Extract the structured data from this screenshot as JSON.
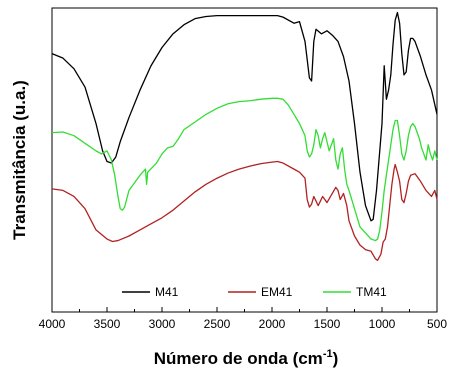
{
  "chart_data": {
    "type": "line",
    "title": "",
    "xlabel": "Número de onda (cm",
    "xlabel_sup": "-1",
    "xlabel_close": ")",
    "ylabel": "Transmitância (u.a.)",
    "xlim": [
      4000,
      500
    ],
    "x_reversed": true,
    "ylim": [
      0,
      100
    ],
    "y_ticks_labeled": false,
    "grid": false,
    "legend_position": "bottom-center",
    "x_ticks": [
      4000,
      3500,
      3000,
      2500,
      2000,
      1500,
      1000,
      500
    ],
    "x_tick_labels": [
      "4000",
      "3500",
      "3000",
      "2500",
      "2000",
      "1500",
      "1000",
      "500"
    ],
    "series": [
      {
        "name": "M41",
        "color": "#000000",
        "points": [
          [
            4000,
            85
          ],
          [
            3900,
            83.5
          ],
          [
            3800,
            80
          ],
          [
            3700,
            74
          ],
          [
            3600,
            62
          ],
          [
            3540,
            53
          ],
          [
            3500,
            49.5
          ],
          [
            3460,
            49
          ],
          [
            3420,
            51
          ],
          [
            3380,
            56
          ],
          [
            3300,
            64
          ],
          [
            3200,
            73
          ],
          [
            3100,
            81
          ],
          [
            3000,
            87
          ],
          [
            2900,
            91.5
          ],
          [
            2800,
            94.5
          ],
          [
            2700,
            96.5
          ],
          [
            2600,
            97.2
          ],
          [
            2500,
            97.5
          ],
          [
            2300,
            97.5
          ],
          [
            2100,
            97.5
          ],
          [
            1950,
            97.5
          ],
          [
            1900,
            97
          ],
          [
            1800,
            95
          ],
          [
            1750,
            95.5
          ],
          [
            1700,
            89
          ],
          [
            1660,
            77
          ],
          [
            1640,
            76
          ],
          [
            1620,
            89
          ],
          [
            1600,
            93
          ],
          [
            1550,
            91.5
          ],
          [
            1500,
            92.5
          ],
          [
            1450,
            91
          ],
          [
            1400,
            89
          ],
          [
            1350,
            84
          ],
          [
            1300,
            76
          ],
          [
            1250,
            62
          ],
          [
            1200,
            46
          ],
          [
            1150,
            35
          ],
          [
            1100,
            30
          ],
          [
            1080,
            30.5
          ],
          [
            1050,
            40
          ],
          [
            1000,
            62
          ],
          [
            980,
            81
          ],
          [
            960,
            70
          ],
          [
            940,
            73
          ],
          [
            920,
            78
          ],
          [
            900,
            88
          ],
          [
            880,
            96
          ],
          [
            860,
            98.5
          ],
          [
            840,
            95
          ],
          [
            820,
            85
          ],
          [
            800,
            78
          ],
          [
            780,
            79
          ],
          [
            760,
            86
          ],
          [
            740,
            90
          ],
          [
            720,
            90
          ],
          [
            700,
            89
          ],
          [
            650,
            84
          ],
          [
            600,
            78
          ],
          [
            550,
            73
          ],
          [
            500,
            65
          ]
        ]
      },
      {
        "name": "EM41",
        "color": "#b22222",
        "points": [
          [
            4000,
            40.5
          ],
          [
            3900,
            40
          ],
          [
            3800,
            38
          ],
          [
            3700,
            34
          ],
          [
            3600,
            27
          ],
          [
            3500,
            24
          ],
          [
            3450,
            23.2
          ],
          [
            3400,
            23.5
          ],
          [
            3300,
            25
          ],
          [
            3200,
            27
          ],
          [
            3100,
            29
          ],
          [
            3000,
            31
          ],
          [
            2900,
            33.5
          ],
          [
            2800,
            36.5
          ],
          [
            2700,
            39.5
          ],
          [
            2600,
            42
          ],
          [
            2500,
            44
          ],
          [
            2400,
            45.7
          ],
          [
            2300,
            47
          ],
          [
            2200,
            48
          ],
          [
            2100,
            48.8
          ],
          [
            2000,
            49.3
          ],
          [
            1950,
            49.5
          ],
          [
            1900,
            49
          ],
          [
            1800,
            47
          ],
          [
            1750,
            46
          ],
          [
            1700,
            44
          ],
          [
            1680,
            37
          ],
          [
            1660,
            34.5
          ],
          [
            1640,
            35.5
          ],
          [
            1620,
            38
          ],
          [
            1600,
            36.5
          ],
          [
            1580,
            35
          ],
          [
            1560,
            36.5
          ],
          [
            1540,
            38
          ],
          [
            1500,
            36
          ],
          [
            1460,
            38.5
          ],
          [
            1420,
            41
          ],
          [
            1400,
            40
          ],
          [
            1380,
            37
          ],
          [
            1350,
            39
          ],
          [
            1320,
            35
          ],
          [
            1300,
            30
          ],
          [
            1250,
            25
          ],
          [
            1200,
            22
          ],
          [
            1150,
            20.5
          ],
          [
            1100,
            20
          ],
          [
            1060,
            17.5
          ],
          [
            1040,
            17
          ],
          [
            1010,
            19
          ],
          [
            990,
            23
          ],
          [
            970,
            24
          ],
          [
            950,
            28
          ],
          [
            930,
            35
          ],
          [
            910,
            42
          ],
          [
            890,
            47
          ],
          [
            880,
            48.5
          ],
          [
            860,
            46
          ],
          [
            840,
            43
          ],
          [
            820,
            37
          ],
          [
            800,
            36
          ],
          [
            780,
            39
          ],
          [
            760,
            43
          ],
          [
            740,
            45
          ],
          [
            700,
            45.5
          ],
          [
            650,
            43
          ],
          [
            600,
            40
          ],
          [
            550,
            38
          ],
          [
            520,
            40
          ],
          [
            500,
            37
          ]
        ]
      },
      {
        "name": "TM41",
        "color": "#33dd33",
        "points": [
          [
            4000,
            59
          ],
          [
            3900,
            59.2
          ],
          [
            3800,
            58
          ],
          [
            3700,
            55.5
          ],
          [
            3600,
            53
          ],
          [
            3550,
            52
          ],
          [
            3500,
            53
          ],
          [
            3460,
            50
          ],
          [
            3430,
            45
          ],
          [
            3400,
            38
          ],
          [
            3380,
            34
          ],
          [
            3360,
            33.5
          ],
          [
            3340,
            34.5
          ],
          [
            3300,
            40
          ],
          [
            3200,
            45
          ],
          [
            3150,
            47
          ],
          [
            3140,
            42
          ],
          [
            3130,
            46
          ],
          [
            3050,
            49
          ],
          [
            3000,
            52
          ],
          [
            2950,
            54
          ],
          [
            2900,
            54.5
          ],
          [
            2850,
            57
          ],
          [
            2800,
            60
          ],
          [
            2700,
            62.5
          ],
          [
            2600,
            65
          ],
          [
            2500,
            67
          ],
          [
            2400,
            68.5
          ],
          [
            2300,
            69.2
          ],
          [
            2200,
            69.5
          ],
          [
            2100,
            70
          ],
          [
            2000,
            70.3
          ],
          [
            1950,
            70.3
          ],
          [
            1900,
            70
          ],
          [
            1850,
            68
          ],
          [
            1800,
            65
          ],
          [
            1750,
            62
          ],
          [
            1700,
            58
          ],
          [
            1680,
            53
          ],
          [
            1660,
            51
          ],
          [
            1640,
            52
          ],
          [
            1620,
            55
          ],
          [
            1600,
            60
          ],
          [
            1580,
            58
          ],
          [
            1560,
            54
          ],
          [
            1540,
            57
          ],
          [
            1520,
            59
          ],
          [
            1500,
            56
          ],
          [
            1480,
            53
          ],
          [
            1460,
            55
          ],
          [
            1440,
            57
          ],
          [
            1420,
            50
          ],
          [
            1400,
            47
          ],
          [
            1380,
            52
          ],
          [
            1360,
            54
          ],
          [
            1340,
            47
          ],
          [
            1320,
            42
          ],
          [
            1300,
            40
          ],
          [
            1250,
            34
          ],
          [
            1200,
            28
          ],
          [
            1150,
            26
          ],
          [
            1100,
            24
          ],
          [
            1060,
            23.5
          ],
          [
            1040,
            24
          ],
          [
            1020,
            27
          ],
          [
            1000,
            33
          ],
          [
            980,
            40
          ],
          [
            960,
            45
          ],
          [
            940,
            50
          ],
          [
            920,
            55
          ],
          [
            900,
            60
          ],
          [
            880,
            63
          ],
          [
            860,
            63
          ],
          [
            840,
            58
          ],
          [
            820,
            52
          ],
          [
            800,
            50
          ],
          [
            780,
            53
          ],
          [
            760,
            58
          ],
          [
            740,
            61
          ],
          [
            720,
            62
          ],
          [
            700,
            61
          ],
          [
            680,
            59
          ],
          [
            660,
            57
          ],
          [
            640,
            54
          ],
          [
            620,
            52
          ],
          [
            600,
            50
          ],
          [
            580,
            55
          ],
          [
            560,
            52
          ],
          [
            540,
            50
          ],
          [
            520,
            53
          ],
          [
            500,
            50
          ]
        ]
      }
    ]
  }
}
